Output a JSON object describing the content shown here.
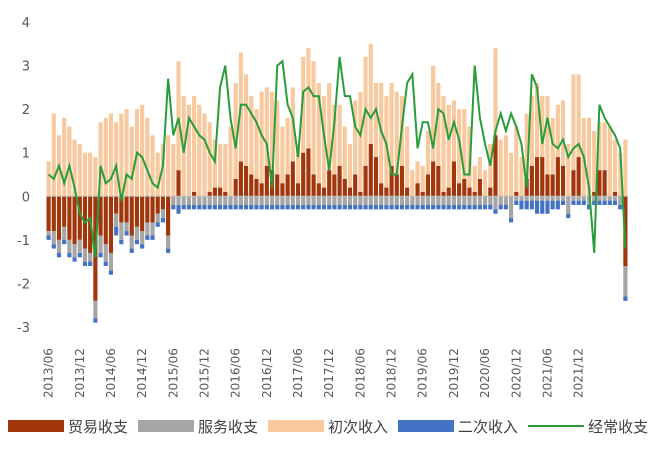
{
  "chart_data": {
    "type": "bar",
    "stacked": true,
    "x_start": "2013/06",
    "x_end": "2021/12",
    "frequency": "monthly",
    "tick_labels": [
      "2013/06",
      "2013/12",
      "2014/06",
      "2014/12",
      "2015/06",
      "2015/12",
      "2016/06",
      "2016/12",
      "2017/06",
      "2017/12",
      "2018/06",
      "2018/12",
      "2019/06",
      "2019/12",
      "2020/06",
      "2020/12",
      "2021/06",
      "2021/12"
    ],
    "y_ticks": [
      4,
      3,
      2,
      1,
      0,
      -1,
      -2,
      -3
    ],
    "ylim": [
      -3,
      4
    ],
    "grid": false,
    "legend_position": "bottom",
    "colors": {
      "trade": "#a0360a",
      "services": "#a6a6a6",
      "primary": "#f8c99e",
      "secondary": "#4472c4",
      "current_account": "#2a9d3a"
    },
    "series": [
      {
        "name": "贸易收支",
        "key": "trade",
        "values": [
          -0.8,
          -0.8,
          -1.0,
          -0.7,
          -1.0,
          -1.1,
          -1.0,
          -1.2,
          -1.3,
          -2.4,
          -0.9,
          -1.1,
          -1.3,
          -0.4,
          -0.6,
          -0.6,
          -0.9,
          -0.7,
          -0.8,
          -0.6,
          -0.6,
          -0.4,
          -0.3,
          -0.9,
          0.0,
          0.6,
          0.0,
          0.0,
          0.1,
          0.0,
          0.0,
          0.1,
          0.2,
          0.2,
          0.1,
          0.0,
          0.4,
          0.8,
          0.7,
          0.5,
          0.4,
          0.3,
          0.7,
          0.6,
          0.5,
          0.3,
          0.5,
          0.8,
          0.3,
          1.0,
          1.1,
          0.5,
          0.3,
          0.2,
          0.6,
          0.5,
          0.7,
          0.4,
          0.2,
          0.5,
          0.1,
          0.7,
          1.2,
          0.9,
          0.3,
          0.2,
          0.7,
          0.5,
          0.7,
          0.2,
          0.0,
          0.3,
          0.1,
          0.5,
          0.8,
          0.7,
          0.1,
          0.2,
          0.8,
          0.3,
          0.4,
          0.2,
          0.1,
          0.4,
          0.0,
          0.2,
          1.4,
          0.0,
          0.0,
          0.0,
          0.1,
          0.0,
          0.4,
          0.7,
          0.9,
          0.9,
          0.5,
          0.5,
          0.9,
          0.7,
          0.0,
          0.6,
          0.9,
          0.0,
          0.0,
          0.1,
          0.6,
          0.6,
          0.0,
          0.1,
          0.0,
          -1.6
        ],
        "note": "negative values stack downward from zero"
      },
      {
        "name": "服务收支",
        "key": "services",
        "values": [
          -0.1,
          -0.3,
          -0.3,
          -0.3,
          -0.3,
          -0.3,
          -0.3,
          -0.3,
          -0.2,
          -0.4,
          -0.4,
          -0.4,
          -0.4,
          -0.3,
          -0.4,
          -0.2,
          -0.3,
          -0.3,
          -0.3,
          -0.3,
          -0.3,
          -0.2,
          -0.2,
          -0.3,
          -0.2,
          -0.2,
          -0.2,
          -0.2,
          -0.2,
          -0.2,
          -0.2,
          -0.2,
          -0.2,
          -0.2,
          -0.2,
          -0.2,
          -0.2,
          -0.2,
          -0.2,
          -0.2,
          -0.2,
          -0.2,
          -0.2,
          -0.2,
          -0.2,
          -0.2,
          -0.2,
          -0.2,
          -0.2,
          -0.2,
          -0.2,
          -0.2,
          -0.2,
          -0.2,
          -0.2,
          -0.2,
          -0.2,
          -0.2,
          -0.2,
          -0.2,
          -0.2,
          -0.2,
          -0.2,
          -0.2,
          -0.2,
          -0.2,
          -0.2,
          -0.2,
          -0.2,
          -0.2,
          -0.2,
          -0.2,
          -0.2,
          -0.2,
          -0.2,
          -0.2,
          -0.2,
          -0.2,
          -0.2,
          -0.2,
          -0.2,
          -0.2,
          -0.2,
          -0.2,
          -0.2,
          -0.2,
          -0.3,
          -0.2,
          -0.2,
          -0.5,
          -0.1,
          -0.1,
          -0.1,
          -0.1,
          -0.1,
          -0.1,
          -0.1,
          -0.1,
          -0.1,
          -0.1,
          -0.4,
          -0.1,
          -0.1,
          -0.1,
          -0.2,
          -0.1,
          -0.1,
          -0.1,
          -0.1,
          -0.1,
          -0.2,
          -0.7
        ]
      },
      {
        "name": "初次收入",
        "key": "primary",
        "values": [
          0.8,
          1.9,
          1.4,
          1.8,
          1.6,
          1.3,
          1.2,
          1.0,
          1.0,
          0.9,
          1.7,
          1.8,
          1.9,
          1.7,
          1.9,
          2.0,
          1.6,
          2.0,
          2.1,
          1.8,
          1.4,
          1.0,
          1.2,
          1.4,
          1.2,
          2.5,
          2.3,
          2.1,
          2.2,
          2.1,
          1.9,
          1.6,
          1.1,
          1.0,
          1.1,
          1.6,
          2.2,
          2.5,
          2.1,
          1.8,
          1.6,
          2.1,
          1.8,
          1.8,
          1.7,
          1.3,
          1.3,
          1.7,
          0.9,
          2.2,
          2.3,
          2.6,
          2.3,
          2.1,
          2.0,
          1.6,
          1.4,
          1.2,
          1.0,
          1.7,
          2.3,
          2.5,
          2.3,
          1.7,
          2.3,
          2.1,
          1.9,
          1.9,
          1.6,
          1.4,
          0.6,
          0.5,
          0.6,
          1.0,
          2.2,
          1.9,
          2.2,
          1.9,
          1.4,
          1.7,
          1.6,
          1.4,
          0.6,
          0.5,
          0.6,
          1.0,
          2.0,
          1.3,
          1.4,
          1.0,
          1.5,
          0.9,
          1.5,
          1.6,
          1.7,
          1.4,
          1.8,
          1.3,
          1.2,
          1.5,
          1.2,
          2.2,
          1.9,
          1.8,
          1.8,
          1.4,
          1.1,
          1.1,
          1.6,
          1.2,
          1.0,
          1.3
        ],
        "note": "positive values stacked above trade"
      },
      {
        "name": "二次收入",
        "key": "secondary",
        "values": [
          -0.1,
          -0.1,
          -0.1,
          -0.1,
          -0.1,
          -0.1,
          -0.1,
          -0.1,
          -0.1,
          -0.1,
          -0.1,
          -0.1,
          -0.1,
          -0.2,
          -0.1,
          -0.1,
          -0.1,
          -0.1,
          -0.1,
          -0.1,
          -0.1,
          -0.1,
          -0.1,
          -0.1,
          -0.1,
          -0.2,
          -0.1,
          -0.1,
          -0.1,
          -0.1,
          -0.1,
          -0.1,
          -0.1,
          -0.1,
          -0.1,
          -0.1,
          -0.1,
          -0.1,
          -0.1,
          -0.1,
          -0.1,
          -0.1,
          -0.1,
          -0.1,
          -0.1,
          -0.1,
          -0.1,
          -0.1,
          -0.1,
          -0.1,
          -0.1,
          -0.1,
          -0.1,
          -0.1,
          -0.1,
          -0.1,
          -0.1,
          -0.1,
          -0.1,
          -0.1,
          -0.1,
          -0.1,
          -0.1,
          -0.1,
          -0.1,
          -0.1,
          -0.1,
          -0.1,
          -0.1,
          -0.1,
          -0.1,
          -0.1,
          -0.1,
          -0.1,
          -0.1,
          -0.1,
          -0.1,
          -0.1,
          -0.1,
          -0.1,
          -0.1,
          -0.1,
          -0.1,
          -0.1,
          -0.1,
          -0.1,
          -0.1,
          -0.1,
          -0.1,
          -0.1,
          -0.1,
          -0.2,
          -0.2,
          -0.2,
          -0.3,
          -0.3,
          -0.3,
          -0.2,
          -0.2,
          -0.1,
          -0.1,
          -0.1,
          -0.1,
          -0.1,
          -0.1,
          -0.1,
          -0.1,
          -0.1,
          -0.1,
          -0.1,
          -0.1,
          -0.1
        ]
      },
      {
        "name": "经常收支",
        "key": "current_account",
        "type": "line",
        "values": [
          0.5,
          0.4,
          0.7,
          0.3,
          0.7,
          0.2,
          -0.4,
          -0.6,
          -0.5,
          -1.4,
          0.7,
          0.3,
          0.4,
          0.7,
          -0.1,
          0.5,
          0.4,
          1.0,
          0.9,
          0.6,
          0.3,
          0.2,
          0.7,
          2.7,
          1.4,
          1.8,
          1.0,
          1.8,
          1.6,
          1.4,
          1.3,
          1.0,
          0.8,
          2.5,
          3.0,
          1.8,
          1.1,
          2.1,
          2.1,
          1.9,
          1.7,
          1.4,
          1.2,
          0.2,
          3.0,
          3.1,
          2.1,
          1.8,
          0.9,
          2.4,
          2.5,
          2.3,
          2.3,
          1.4,
          0.6,
          1.7,
          3.2,
          2.3,
          2.3,
          1.6,
          1.4,
          2.0,
          1.8,
          2.0,
          1.5,
          1.2,
          0.5,
          0.5,
          1.6,
          2.6,
          2.8,
          1.1,
          1.7,
          1.7,
          1.1,
          2.0,
          1.9,
          1.3,
          1.7,
          1.3,
          0.5,
          0.5,
          3.0,
          1.8,
          1.2,
          0.7,
          1.5,
          1.9,
          1.5,
          1.9,
          1.6,
          1.2,
          0.2,
          2.8,
          2.5,
          1.2,
          1.8,
          1.2,
          1.1,
          1.3,
          0.9,
          1.1,
          1.2,
          0.9,
          0.2,
          -1.3,
          2.1,
          1.8,
          1.6,
          1.4,
          1.1,
          -1.2
        ]
      }
    ]
  },
  "legend": [
    {
      "label": "贸易收支",
      "key": "trade",
      "kind": "bar"
    },
    {
      "label": "服务收支",
      "key": "services",
      "kind": "bar"
    },
    {
      "label": "初次收入",
      "key": "primary",
      "kind": "bar"
    },
    {
      "label": "二次收入",
      "key": "secondary",
      "kind": "bar"
    },
    {
      "label": "经常收支",
      "key": "current_account",
      "kind": "line"
    }
  ]
}
